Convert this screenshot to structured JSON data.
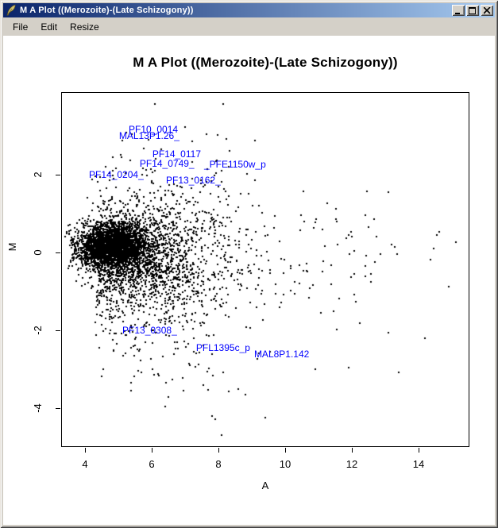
{
  "window": {
    "title": "M A Plot ((Merozoite)-(Late Schizogony))",
    "icon": "tk-feather",
    "controls": {
      "minimize": "minimize",
      "maximize": "maximize",
      "close": "close"
    }
  },
  "menu": {
    "items": [
      {
        "label": "File"
      },
      {
        "label": "Edit"
      },
      {
        "label": "Resize"
      }
    ]
  },
  "colors": {
    "titlebar_gradient_left": "#0a246a",
    "titlebar_gradient_right": "#a6caf0",
    "chrome_gray": "#d4d0c8",
    "plot_background": "#ffffff",
    "point_color": "#000000",
    "gene_label_color": "#0000ff"
  },
  "chart_data": {
    "type": "scatter",
    "title": "M A Plot ((Merozoite)-(Late Schizogony))",
    "xlabel": "A",
    "ylabel": "M",
    "xlim": [
      3.29,
      15.52
    ],
    "ylim": [
      -5.0,
      4.12
    ],
    "x_ticks": [
      4,
      6,
      8,
      10,
      12,
      14
    ],
    "y_ticks": [
      2,
      0,
      -2,
      -4
    ],
    "grid": false,
    "legend": "none",
    "n_points_approx": 5000,
    "point_color": "#000000",
    "label_color": "#0000ff",
    "labeled_points": [
      {
        "label": "PF10_0014",
        "a": 5.31,
        "m": 3.16
      },
      {
        "label": "MAL13P1.26_",
        "a": 5.02,
        "m": 3.0
      },
      {
        "label": "PF14_0117",
        "a": 6.02,
        "m": 2.53
      },
      {
        "label": "PF14_0749_",
        "a": 5.64,
        "m": 2.29
      },
      {
        "label": "_PFE1150w_p",
        "a": 7.57,
        "m": 2.27
      },
      {
        "label": "PF14_0204_",
        "a": 4.12,
        "m": 2.0
      },
      {
        "label": "PF13_0162_",
        "a": 6.43,
        "m": 1.86
      },
      {
        "label": "PF13_0308_",
        "a": 5.12,
        "m": -2.0
      },
      {
        "label": "PFL1395c_p",
        "a": 7.33,
        "m": -2.45
      },
      {
        "label": "MAL8P1.142",
        "a": 9.07,
        "m": -2.61
      }
    ],
    "outlier_points": [
      {
        "a": 6.1,
        "m": 3.82
      },
      {
        "a": 8.14,
        "m": 3.82
      },
      {
        "a": 7.0,
        "m": 3.22
      },
      {
        "a": 5.9,
        "m": 2.9
      },
      {
        "a": 8.3,
        "m": 2.2
      },
      {
        "a": 4.3,
        "m": 1.95
      },
      {
        "a": 6.95,
        "m": -3.55
      },
      {
        "a": 7.7,
        "m": -3.53
      },
      {
        "a": 8.6,
        "m": -3.51
      },
      {
        "a": 8.3,
        "m": -3.57
      },
      {
        "a": 8.8,
        "m": -3.65
      },
      {
        "a": 6.5,
        "m": -3.71
      },
      {
        "a": 6.4,
        "m": -3.96
      },
      {
        "a": 7.8,
        "m": -4.2
      },
      {
        "a": 7.9,
        "m": -4.29
      },
      {
        "a": 9.4,
        "m": -4.24
      },
      {
        "a": 8.1,
        "m": -4.69
      },
      {
        "a": 14.55,
        "m": 0.45
      },
      {
        "a": 12.4,
        "m": -0.35
      },
      {
        "a": 11.9,
        "m": -2.95
      },
      {
        "a": 10.9,
        "m": -3.0
      }
    ],
    "point_cloud_components": [
      {
        "n": 2400,
        "a": [
          "normal",
          4.8,
          0.5,
          3.35,
          7.5
        ],
        "m": [
          "normal",
          0.17,
          0.27,
          -1.5,
          1.8
        ]
      },
      {
        "n": 1200,
        "a": [
          "normal",
          5.4,
          0.95,
          3.45,
          9.5
        ],
        "m": [
          "normal",
          0.05,
          0.5,
          -2.2,
          2.2
        ]
      },
      {
        "n": 1000,
        "a": [
          "exp",
          4.35,
          2.3,
          4.35,
          15.45
        ],
        "m": [
          "normal",
          -0.25,
          0.95,
          -3.2,
          2.6
        ]
      },
      {
        "n": 300,
        "a": [
          "normal",
          6.4,
          1.2,
          4.3,
          11.0
        ],
        "m": [
          "exp",
          -0.35,
          -1.0,
          -3.6,
          -0.35
        ]
      },
      {
        "n": 130,
        "a": [
          "normal",
          6.8,
          1.4,
          4.3,
          11.5
        ],
        "m": [
          "exp",
          0.5,
          0.9,
          0.5,
          3.3
        ]
      }
    ],
    "seed": 42
  }
}
